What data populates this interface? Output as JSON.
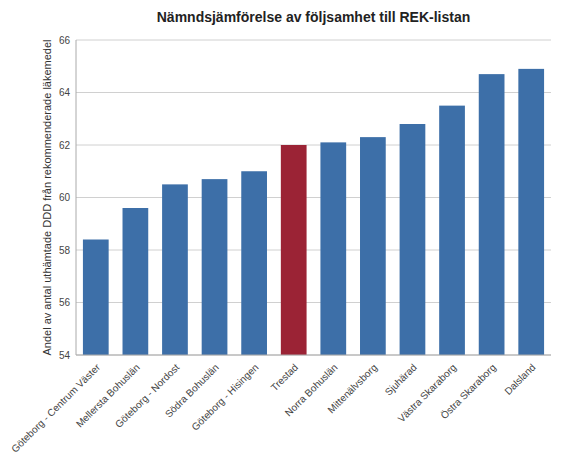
{
  "chart_data": {
    "type": "bar",
    "title": "Nämndsjämförelse av följsamhet till REK-listan",
    "ylabel": "Andel av antal uthämtade DDD från rekommenderade läkemedel",
    "categories": [
      "Göteborg - Centrum Väster",
      "Mellersta Bohuslän",
      "Göteborg - Nordost",
      "Södra Bohuslän",
      "Göteborg - Hisingen",
      "Trestad",
      "Norra Bohuslän",
      "Mittenälvsborg",
      "Sjuhärad",
      "Västra Skaraborg",
      "Östra Skaraborg",
      "Dalsland"
    ],
    "values": [
      58.4,
      59.6,
      60.5,
      60.7,
      61.0,
      62.0,
      62.1,
      62.3,
      62.8,
      63.5,
      64.7,
      64.9
    ],
    "colors": [
      "#3d6fa8",
      "#3d6fa8",
      "#3d6fa8",
      "#3d6fa8",
      "#3d6fa8",
      "#9b2335",
      "#3d6fa8",
      "#3d6fa8",
      "#3d6fa8",
      "#3d6fa8",
      "#3d6fa8",
      "#3d6fa8"
    ],
    "ylim": [
      54,
      66
    ],
    "yticks": [
      54,
      56,
      58,
      60,
      62,
      64,
      66
    ],
    "grid": true
  }
}
